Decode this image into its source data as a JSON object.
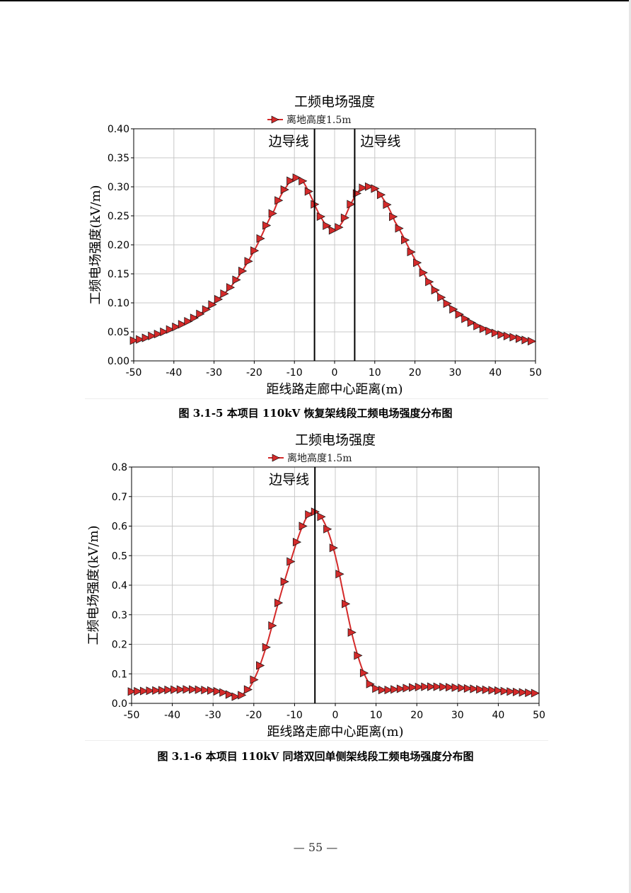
{
  "page": {
    "number": "— 55 —"
  },
  "chart_data": [
    {
      "type": "line",
      "title": "工频电场强度",
      "xlabel": "距线路走廊中心距离(m)",
      "ylabel": "工频电场强度(kV/m)",
      "xlim": [
        -50,
        50
      ],
      "ylim": [
        0,
        0.4
      ],
      "xticks": [
        "-50",
        "-40",
        "-30",
        "-20",
        "-10",
        "0",
        "10",
        "20",
        "30",
        "40",
        "50"
      ],
      "yticks": [
        "0.00",
        "0.05",
        "0.10",
        "0.15",
        "0.20",
        "0.25",
        "0.30",
        "0.35",
        "0.40"
      ],
      "grid": true,
      "legend_position": "top-center",
      "annotations": [
        {
          "label": "边导线",
          "x": -5
        },
        {
          "label": "边导线",
          "x": 5
        }
      ],
      "series": [
        {
          "name": "离地高度1.5m",
          "color": "#d42a2a",
          "marker": "triangle-right",
          "x": [
            -50,
            -45,
            -40,
            -35,
            -30,
            -25,
            -20,
            -15,
            -12,
            -10,
            -8,
            -6,
            -4,
            -2,
            0,
            2,
            4,
            6,
            8,
            10,
            12,
            15,
            20,
            25,
            30,
            35,
            40,
            45,
            50
          ],
          "y": [
            0.035,
            0.044,
            0.057,
            0.074,
            0.1,
            0.135,
            0.19,
            0.26,
            0.3,
            0.315,
            0.31,
            0.285,
            0.255,
            0.233,
            0.225,
            0.24,
            0.27,
            0.293,
            0.3,
            0.297,
            0.28,
            0.24,
            0.175,
            0.122,
            0.086,
            0.062,
            0.048,
            0.04,
            0.033
          ]
        }
      ],
      "caption": "图 3.1-5    本项目 110kV 恢复架线段工频电场强度分布图"
    },
    {
      "type": "line",
      "title": "工频电场强度",
      "xlabel": "距线路走廊中心距离(m)",
      "ylabel": "工频电场强度(kV/m)",
      "xlim": [
        -50,
        50
      ],
      "ylim": [
        0,
        0.8
      ],
      "xticks": [
        "-50",
        "-40",
        "-30",
        "-20",
        "-10",
        "0",
        "10",
        "20",
        "30",
        "40",
        "50"
      ],
      "yticks": [
        "0.0",
        "0.1",
        "0.2",
        "0.3",
        "0.4",
        "0.5",
        "0.6",
        "0.7",
        "0.8"
      ],
      "grid": true,
      "legend_position": "top-center",
      "annotations": [
        {
          "label": "边导线",
          "x": -5
        }
      ],
      "series": [
        {
          "name": "离地高度1.5m",
          "color": "#d42a2a",
          "marker": "triangle-right",
          "x": [
            -50,
            -45,
            -40,
            -35,
            -30,
            -27,
            -24,
            -22,
            -20,
            -17,
            -14,
            -11,
            -8,
            -6,
            -4,
            -2,
            0,
            2,
            4,
            6,
            8,
            10,
            12,
            15,
            20,
            25,
            30,
            35,
            40,
            45,
            50
          ],
          "y": [
            0.04,
            0.043,
            0.046,
            0.047,
            0.043,
            0.035,
            0.022,
            0.04,
            0.08,
            0.19,
            0.34,
            0.48,
            0.6,
            0.645,
            0.64,
            0.59,
            0.5,
            0.37,
            0.24,
            0.14,
            0.075,
            0.05,
            0.045,
            0.048,
            0.055,
            0.056,
            0.053,
            0.048,
            0.043,
            0.038,
            0.034
          ]
        }
      ],
      "caption": "图 3.1-6    本项目 110kV 同塔双回单侧架线段工频电场强度分布图"
    }
  ]
}
